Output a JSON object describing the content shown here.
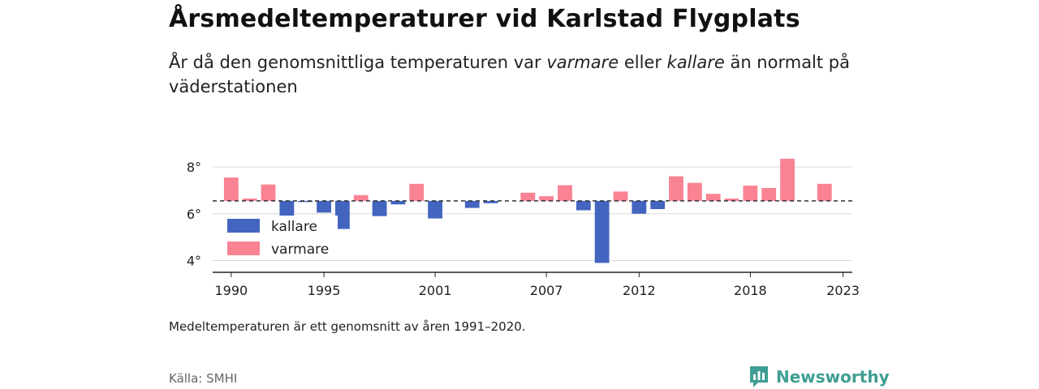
{
  "header": {
    "title": "Årsmedeltemperaturer vid Karlstad Flygplats",
    "subtitle_part1": "År då den genomsnittliga temperaturen var ",
    "subtitle_em1": "varmare",
    "subtitle_part2": " eller ",
    "subtitle_em2": "kallare",
    "subtitle_part3": " än normalt på väderstationen"
  },
  "footer": {
    "note": "Medeltemperaturen är ett genomsnitt av åren 1991–2020.",
    "source": "Källa: SMHI",
    "brand": "Newsworthy"
  },
  "colors": {
    "warm": "#f98393",
    "cold": "#4365bf",
    "brand": "#3f9e93"
  },
  "chart_data": {
    "type": "bar",
    "baseline": 6.55,
    "ylim": [
      3.5,
      8.9
    ],
    "yticks": [
      4,
      6,
      8
    ],
    "ytick_labels": [
      "4°",
      "6°",
      "8°"
    ],
    "xlim": [
      1989,
      2023.5
    ],
    "xticks": [
      1990,
      1995,
      2001,
      2007,
      2012,
      2018,
      2023
    ],
    "xtick_labels": [
      "1990",
      "1995",
      "2001",
      "2007",
      "2012",
      "2018",
      "2023"
    ],
    "legend": [
      {
        "label": "kallare",
        "key": "cold"
      },
      {
        "label": "varmare",
        "key": "warm"
      }
    ],
    "legend_position": "bottom-left",
    "grid": true,
    "years": [
      1990,
      1991,
      1992,
      1993,
      1994,
      1995,
      1996,
      1997,
      1998,
      1999,
      2000,
      2001,
      2002,
      2003,
      2004,
      2005,
      2006,
      2007,
      2008,
      2009,
      2010,
      2011,
      2012,
      2013,
      2014,
      2015,
      2016,
      2017,
      2018,
      2019,
      2020,
      2021,
      2022,
      2023
    ],
    "values": [
      7.55,
      6.65,
      7.25,
      5.8,
      6.5,
      6.05,
      5.35,
      6.8,
      5.9,
      6.4,
      7.28,
      5.8,
      6.55,
      6.25,
      6.45,
      6.55,
      6.9,
      6.75,
      7.22,
      6.15,
      3.9,
      6.95,
      6.0,
      6.2,
      7.6,
      7.32,
      6.85,
      6.65,
      7.2,
      7.1,
      8.35,
      6.55,
      7.28,
      6.55
    ]
  }
}
